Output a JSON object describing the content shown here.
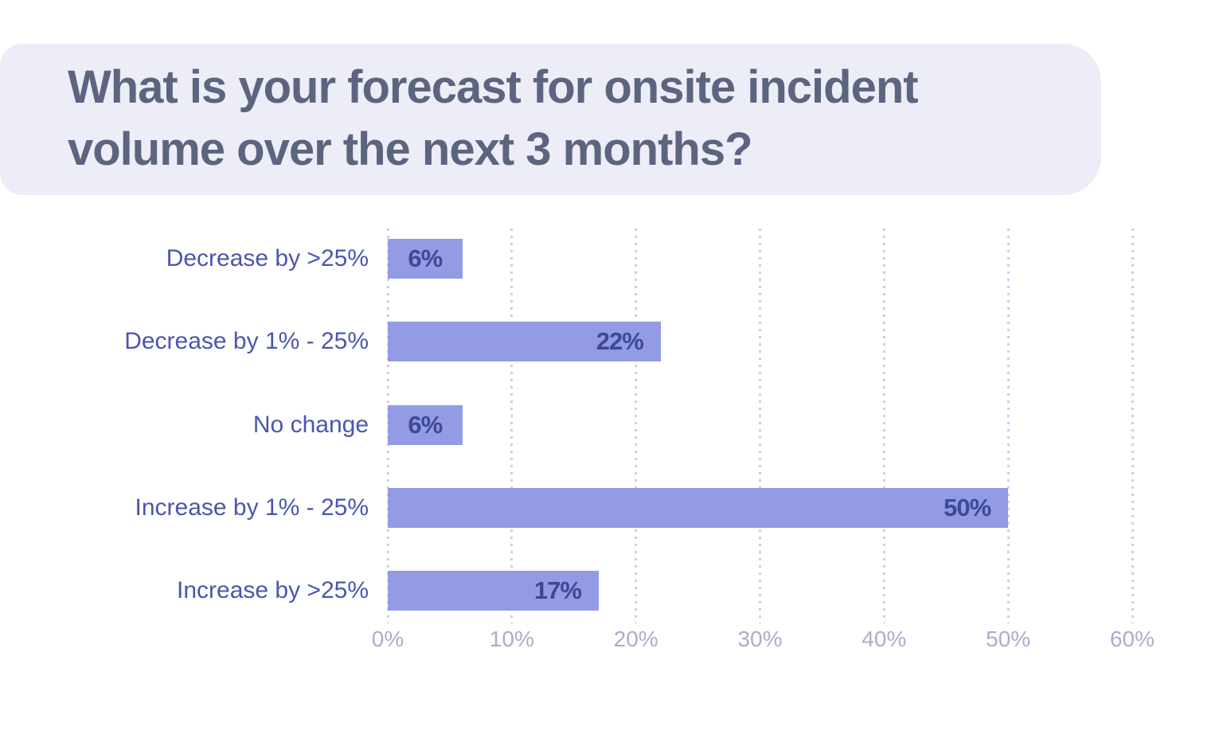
{
  "title": {
    "text": "What is your forecast for onsite incident volume over the next 3 months?"
  },
  "colors": {
    "title_text": "#5C6480",
    "title_card_bg": "#ECEDF6",
    "bar_fill": "#929BE3",
    "bar_value_text": "#3E4899",
    "category_label_text": "#4A56AE",
    "axis_tick_text": "#A9AECB",
    "gridline_dots": "#C9CDEC",
    "page_bg": "#FFFFFF"
  },
  "chart_data": {
    "type": "bar",
    "orientation": "horizontal",
    "title": "What is your forecast for onsite incident volume over the next 3 months?",
    "categories": [
      "Decrease by >25%",
      "Decrease by 1% - 25%",
      "No change",
      "Increase by 1% - 25%",
      "Increase by >25%"
    ],
    "values": [
      6,
      22,
      6,
      50,
      17
    ],
    "value_labels": [
      "6%",
      "22%",
      "6%",
      "50%",
      "17%"
    ],
    "x_ticks": [
      "0%",
      "10%",
      "20%",
      "30%",
      "40%",
      "50%",
      "60%"
    ],
    "xlim": [
      0,
      60
    ],
    "xlabel": "",
    "ylabel": "",
    "grid": "dotted-vertical",
    "legend": "none"
  }
}
